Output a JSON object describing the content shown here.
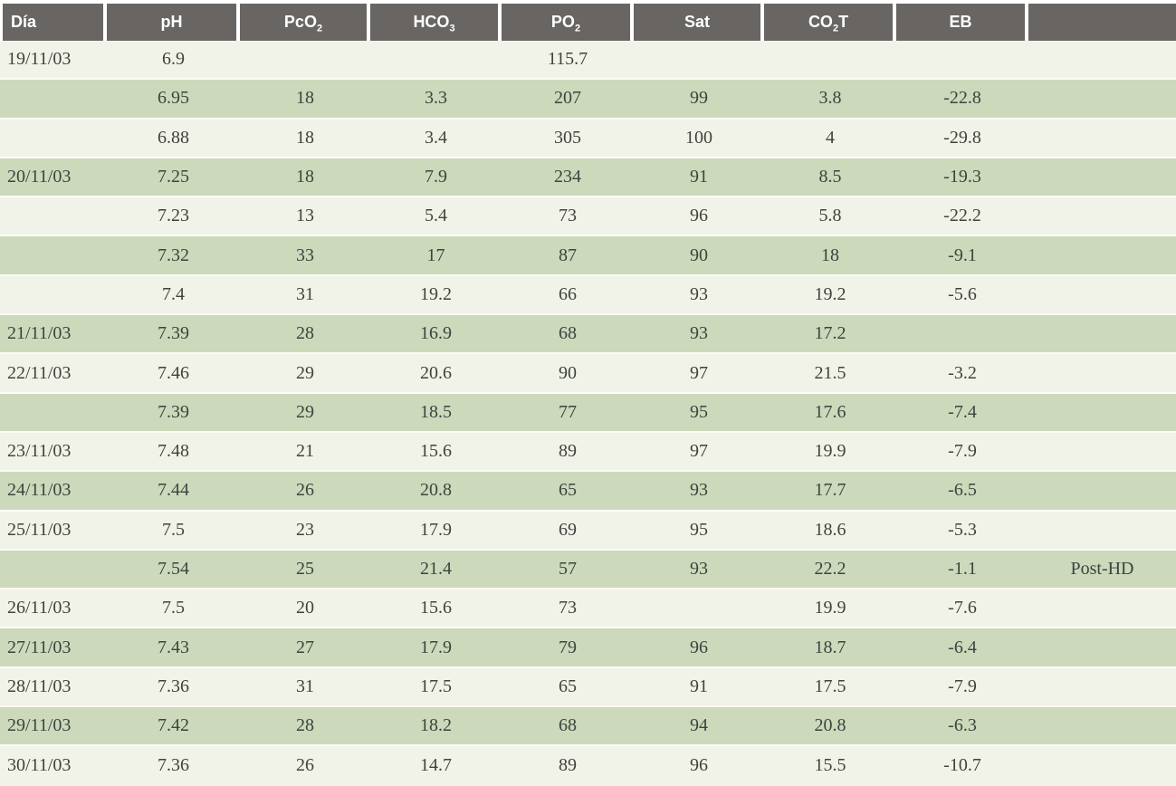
{
  "table": {
    "title": "blood-gas-values-by-day",
    "colors": {
      "header_bg": "#686562",
      "header_text": "#ffffff",
      "row_green": "#ccd9bb",
      "row_cream": "#f1f3e8",
      "text": "#3e433e",
      "separator": "#ffffff"
    },
    "column_keys": [
      "dia",
      "ph",
      "pco2",
      "hco3",
      "po2",
      "sat",
      "co2t",
      "eb",
      "note"
    ],
    "columns": [
      {
        "pre": "Día",
        "sub": "",
        "post": ""
      },
      {
        "pre": "pH",
        "sub": "",
        "post": ""
      },
      {
        "pre": "PcO",
        "sub": "2",
        "post": ""
      },
      {
        "pre": "HCO",
        "sub": "3",
        "post": ""
      },
      {
        "pre": "PO",
        "sub": "2",
        "post": ""
      },
      {
        "pre": "Sat",
        "sub": "",
        "post": ""
      },
      {
        "pre": "CO",
        "sub": "2",
        "post": "T"
      },
      {
        "pre": "EB",
        "sub": "",
        "post": ""
      },
      {
        "pre": "",
        "sub": "",
        "post": ""
      }
    ],
    "rows": [
      [
        "19/11/03",
        "6.9",
        "",
        "",
        "115.7",
        "",
        "",
        "",
        ""
      ],
      [
        "",
        "6.95",
        "18",
        "3.3",
        "207",
        "99",
        "3.8",
        "-22.8",
        ""
      ],
      [
        "",
        "6.88",
        "18",
        "3.4",
        "305",
        "100",
        "4",
        "-29.8",
        ""
      ],
      [
        "20/11/03",
        "7.25",
        "18",
        "7.9",
        "234",
        "91",
        "8.5",
        "-19.3",
        ""
      ],
      [
        "",
        "7.23",
        "13",
        "5.4",
        "73",
        "96",
        "5.8",
        "-22.2",
        ""
      ],
      [
        "",
        "7.32",
        "33",
        "17",
        "87",
        "90",
        "18",
        "-9.1",
        ""
      ],
      [
        "",
        "7.4",
        "31",
        "19.2",
        "66",
        "93",
        "19.2",
        "-5.6",
        ""
      ],
      [
        "21/11/03",
        "7.39",
        "28",
        "16.9",
        "68",
        "93",
        "17.2",
        "",
        ""
      ],
      [
        "22/11/03",
        "7.46",
        "29",
        "20.6",
        "90",
        "97",
        "21.5",
        "-3.2",
        ""
      ],
      [
        "",
        "7.39",
        "29",
        "18.5",
        "77",
        "95",
        "17.6",
        "-7.4",
        ""
      ],
      [
        "23/11/03",
        "7.48",
        "21",
        "15.6",
        "89",
        "97",
        "19.9",
        "-7.9",
        ""
      ],
      [
        "24/11/03",
        "7.44",
        "26",
        "20.8",
        "65",
        "93",
        "17.7",
        "-6.5",
        ""
      ],
      [
        "25/11/03",
        "7.5",
        "23",
        "17.9",
        "69",
        "95",
        "18.6",
        "-5.3",
        ""
      ],
      [
        "",
        "7.54",
        "25",
        "21.4",
        "57",
        "93",
        "22.2",
        "-1.1",
        "Post-HD"
      ],
      [
        "26/11/03",
        "7.5",
        "20",
        "15.6",
        "73",
        "",
        "19.9",
        "-7.6",
        ""
      ],
      [
        "27/11/03",
        "7.43",
        "27",
        "17.9",
        "79",
        "96",
        "18.7",
        "-6.4",
        ""
      ],
      [
        "28/11/03",
        "7.36",
        "31",
        "17.5",
        "65",
        "91",
        "17.5",
        "-7.9",
        ""
      ],
      [
        "29/11/03",
        "7.42",
        "28",
        "18.2",
        "68",
        "94",
        "20.8",
        "-6.3",
        ""
      ],
      [
        "30/11/03",
        "7.36",
        "26",
        "14.7",
        "89",
        "96",
        "15.5",
        "-10.7",
        ""
      ]
    ]
  }
}
